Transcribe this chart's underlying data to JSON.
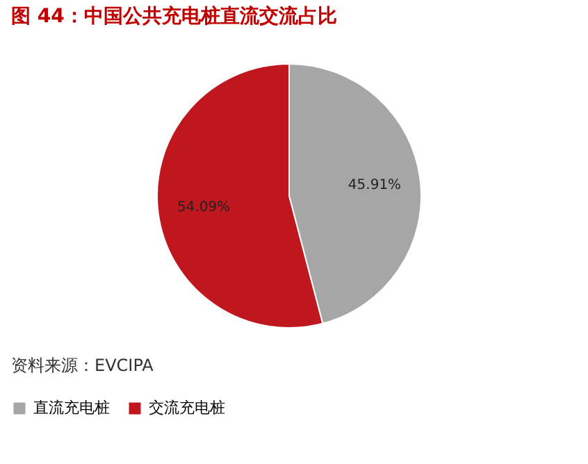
{
  "chart_data": {
    "type": "pie",
    "title": "图 44：中国公共充电桩直流交流占比",
    "categories": [
      "直流充电桩",
      "交流充电桩"
    ],
    "values": [
      45.91,
      54.09
    ],
    "value_labels": [
      "45.91%",
      "54.09%"
    ],
    "colors": [
      "#a6a6a6",
      "#c0171f"
    ],
    "legend": "bottom",
    "annotations": [
      "资料来源：EVCIPA"
    ]
  }
}
